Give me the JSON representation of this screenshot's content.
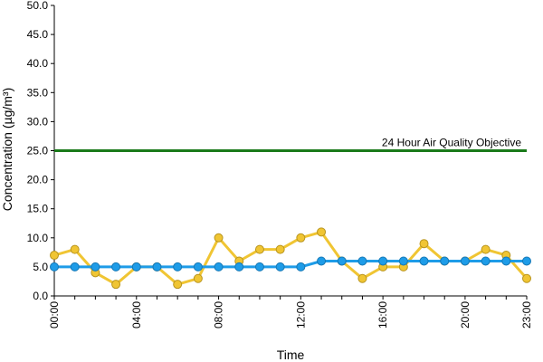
{
  "chart_data": {
    "type": "line",
    "title": "",
    "xlabel": "Time",
    "ylabel": "Concentration (µg/m³)",
    "ylim": [
      0,
      50
    ],
    "yticks": [
      "0.0",
      "5.0",
      "10.0",
      "15.0",
      "20.0",
      "25.0",
      "30.0",
      "35.0",
      "40.0",
      "45.0",
      "50.0"
    ],
    "xticks": [
      "00:00",
      "04:00",
      "08:00",
      "12:00",
      "16:00",
      "20:00",
      "23:00"
    ],
    "x": [
      "00:00",
      "01:00",
      "02:00",
      "03:00",
      "04:00",
      "05:00",
      "06:00",
      "07:00",
      "08:00",
      "09:00",
      "10:00",
      "11:00",
      "12:00",
      "13:00",
      "14:00",
      "15:00",
      "16:00",
      "17:00",
      "18:00",
      "19:00",
      "20:00",
      "21:00",
      "22:00",
      "23:00"
    ],
    "series": [
      {
        "color": "#f0c533",
        "values": [
          7,
          8,
          4,
          2,
          5,
          5,
          2,
          3,
          10,
          6,
          8,
          8,
          10,
          11,
          6,
          3,
          5,
          5,
          9,
          6,
          6,
          8,
          7,
          3
        ]
      },
      {
        "color": "#1e9ce8",
        "values": [
          5,
          5,
          5,
          5,
          5,
          5,
          5,
          5,
          5,
          5,
          5,
          5,
          5,
          6,
          6,
          6,
          6,
          6,
          6,
          6,
          6,
          6,
          6,
          6
        ]
      }
    ],
    "reference_line": {
      "value": 25,
      "label": "24 Hour Air Quality Objective",
      "color": "#1a7a1a"
    },
    "grid": false,
    "legend": "none"
  }
}
